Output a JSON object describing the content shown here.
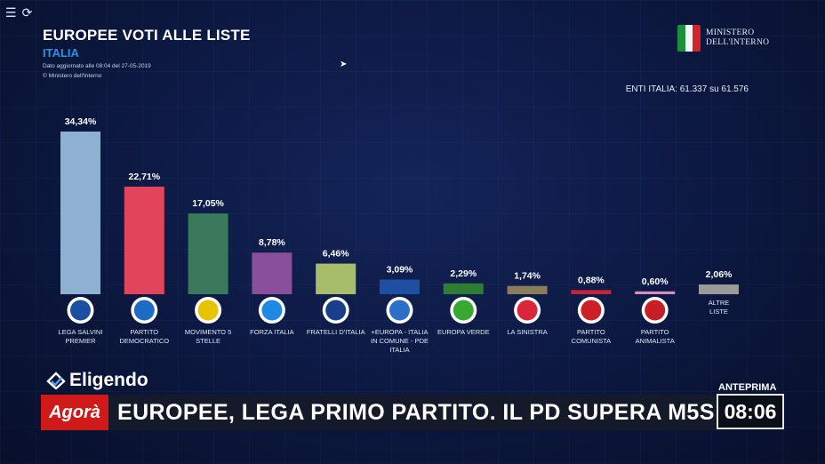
{
  "window": {
    "menu_icon": "hamburger-menu-icon",
    "refresh_icon": "refresh-icon"
  },
  "header": {
    "title": "EUROPEE VOTI ALLE LISTE",
    "region": "ITALIA",
    "updated": "Dato aggiornato alle 08:04 del 27-05-2019",
    "source": "© Ministero dell'Interno",
    "ministry_line1": "MINISTERO",
    "ministry_line2": "DELL'INTERNO",
    "enti": "ENTI ITALIA: 61.337 su 61.576"
  },
  "chart_data": {
    "type": "bar",
    "title": "EUROPEE VOTI ALLE LISTE",
    "categories": [
      "LEGA SALVINI PREMIER",
      "PARTITO DEMOCRATICO",
      "MOVIMENTO 5 STELLE",
      "FORZA ITALIA",
      "FRATELLI D'ITALIA",
      "+EUROPA - ITALIA IN COMUNE - PDE ITALIA",
      "EUROPA VERDE",
      "LA SINISTRA",
      "PARTITO COMUNISTA",
      "PARTITO ANIMALISTA",
      "ALTRE LISTE"
    ],
    "label_lines": [
      [
        "LEGA SALVINI",
        "PREMIER"
      ],
      [
        "PARTITO",
        "DEMOCRATICO"
      ],
      [
        "MOVIMENTO 5",
        "STELLE"
      ],
      [
        "FORZA ITALIA"
      ],
      [
        "FRATELLI D'ITALIA"
      ],
      [
        "+EUROPA - ITALIA",
        "IN COMUNE - PDE",
        "ITALIA"
      ],
      [
        "EUROPA VERDE"
      ],
      [
        "LA SINISTRA"
      ],
      [
        "PARTITO",
        "COMUNISTA"
      ],
      [
        "PARTITO",
        "ANIMALISTA"
      ],
      [
        "ALTRE",
        "LISTE"
      ]
    ],
    "values": [
      34.34,
      22.71,
      17.05,
      8.78,
      6.46,
      3.09,
      2.29,
      1.74,
      0.88,
      0.6,
      2.06
    ],
    "value_labels": [
      "34,34%",
      "22,71%",
      "17,05%",
      "8,78%",
      "6,46%",
      "3,09%",
      "2,29%",
      "1,74%",
      "0,88%",
      "0,60%",
      "2,06%"
    ],
    "colors": [
      "#8fb1d1",
      "#e2445c",
      "#3a7a5a",
      "#8a4f9a",
      "#a8bd6a",
      "#1f4fa3",
      "#2f7d32",
      "#8c7d5a",
      "#c8213a",
      "#d98cc0",
      "#9a9a9a"
    ],
    "logo_colors": [
      "#1b4fa0",
      "#1e6bc4",
      "#e8c400",
      "#1e88e5",
      "#1a3f8a",
      "#2c6fc9",
      "#38a832",
      "#d9263a",
      "#cc1f26",
      "#c81e28",
      ""
    ],
    "logo_names": [
      "lega-logo",
      "pd-logo",
      "m5s-logo",
      "forza-italia-logo",
      "fdi-logo",
      "piu-europa-logo",
      "europa-verde-logo",
      "la-sinistra-logo",
      "partito-comunista-logo",
      "partito-animalista-logo",
      ""
    ],
    "ylim": [
      0,
      35
    ],
    "grid": false
  },
  "overlay": {
    "eligendo": "Eligendo",
    "program": "Agorà",
    "headline": "EUROPEE, LEGA PRIMO PARTITO. IL PD SUPERA M5S",
    "anteprima": "ANTEPRIMA",
    "clock": "08:06"
  }
}
